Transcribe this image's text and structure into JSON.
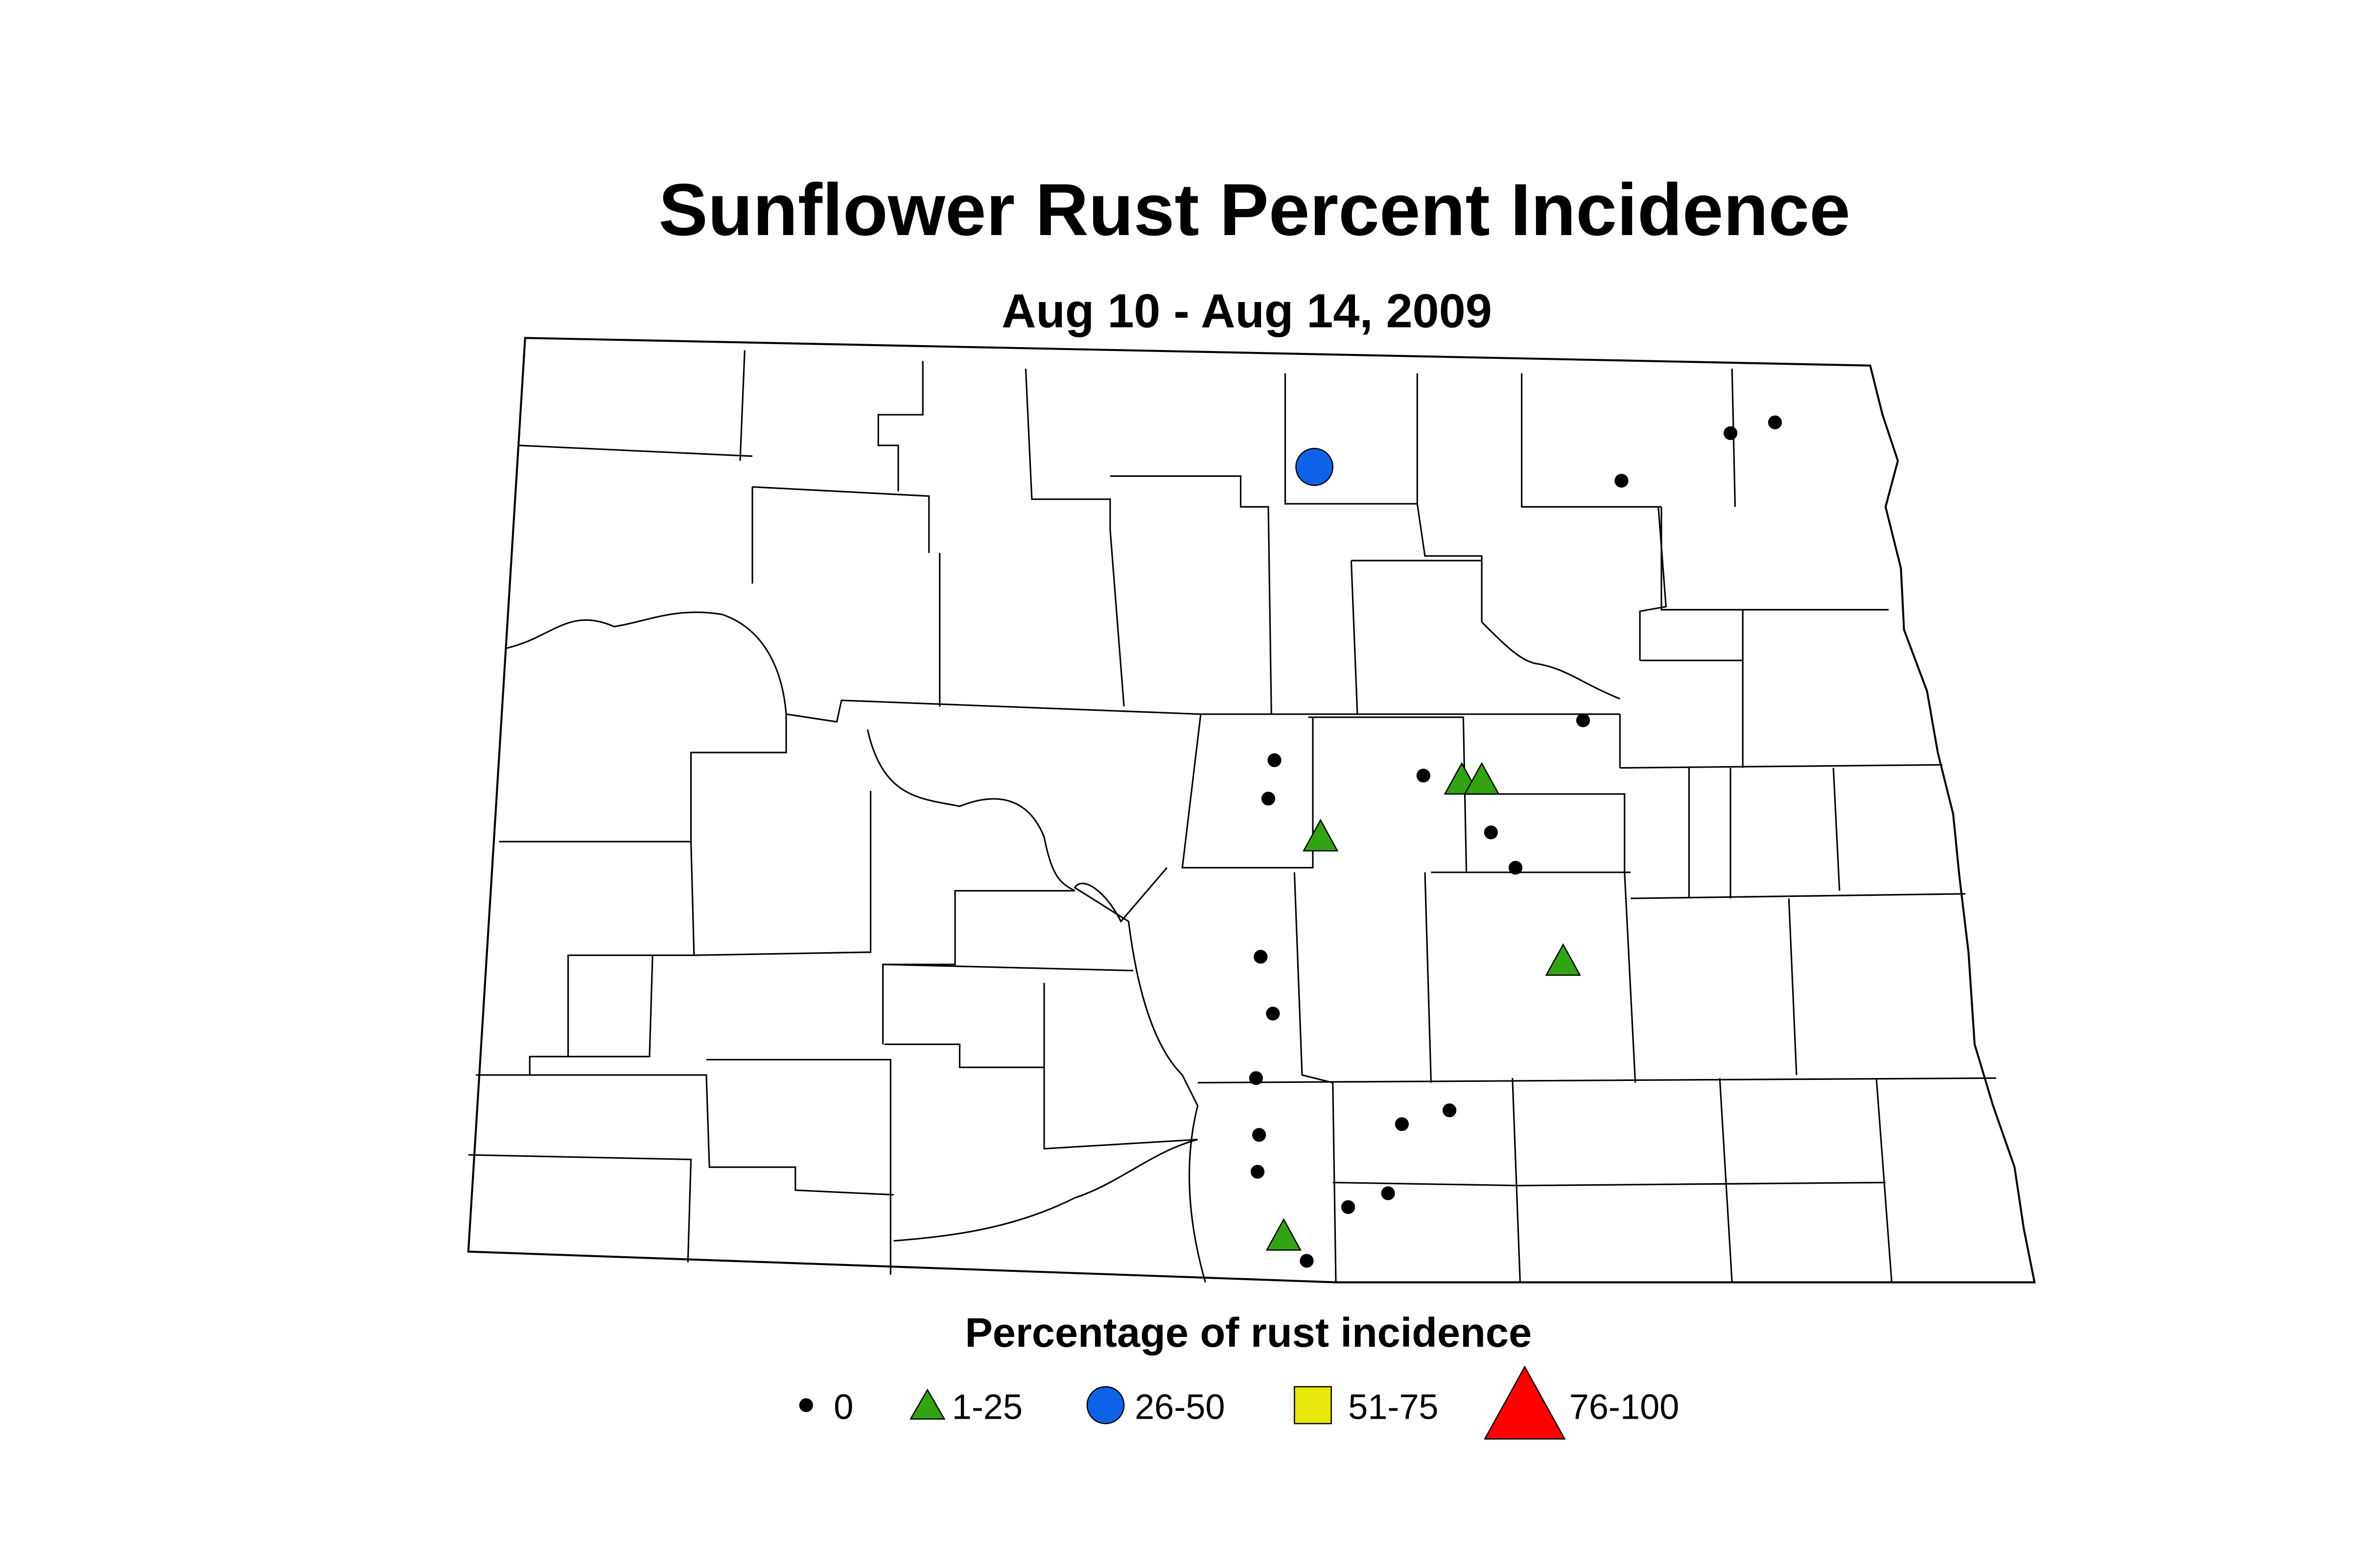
{
  "title": "Sunflower Rust Percent Incidence",
  "subtitle": "Aug 10 - Aug 14, 2009",
  "legend": {
    "title": "Percentage of rust incidence",
    "items": [
      "0",
      "1-25",
      "26-50",
      "51-75",
      "76-100"
    ]
  }
}
